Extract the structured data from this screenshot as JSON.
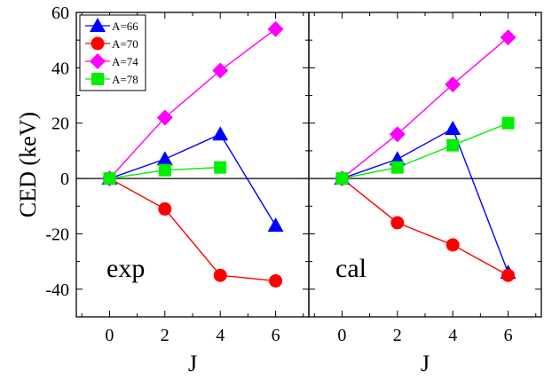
{
  "chart_data": [
    {
      "type": "line",
      "panel": "exp",
      "label": "exp",
      "xlabel": "J",
      "ylabel": "CED  (keV)",
      "xlim": [
        -1.2,
        7.2
      ],
      "ylim": [
        -50,
        60
      ],
      "xticks": [
        0,
        2,
        4,
        6
      ],
      "yticks": [
        -40,
        -20,
        0,
        20,
        40,
        60
      ],
      "zero_line": true,
      "legend": {
        "position": "top-left"
      },
      "series": [
        {
          "name": "A=66",
          "color": "#0000ff",
          "marker": "triangle",
          "x": [
            0,
            2,
            4,
            6
          ],
          "y": [
            0,
            7,
            16,
            -17
          ]
        },
        {
          "name": "A=70",
          "color": "#ff0000",
          "marker": "circle",
          "x": [
            0,
            2,
            4,
            6
          ],
          "y": [
            0,
            -11,
            -35,
            -37
          ]
        },
        {
          "name": "A=74",
          "color": "#ff00ff",
          "marker": "diamond",
          "x": [
            0,
            2,
            4,
            6
          ],
          "y": [
            0,
            22,
            39,
            54
          ]
        },
        {
          "name": "A=78",
          "color": "#00ee00",
          "marker": "square",
          "x": [
            0,
            2,
            4
          ],
          "y": [
            0,
            3,
            4
          ]
        }
      ]
    },
    {
      "type": "line",
      "panel": "cal",
      "label": "cal",
      "xlabel": "J",
      "ylabel": "",
      "xlim": [
        -1.2,
        7.2
      ],
      "ylim": [
        -50,
        60
      ],
      "xticks": [
        0,
        2,
        4,
        6
      ],
      "yticks": [
        -40,
        -20,
        0,
        20,
        40,
        60
      ],
      "zero_line": true,
      "series": [
        {
          "name": "A=66",
          "color": "#0000ff",
          "marker": "triangle",
          "x": [
            0,
            2,
            4,
            6
          ],
          "y": [
            0,
            7,
            18,
            -34
          ]
        },
        {
          "name": "A=70",
          "color": "#ff0000",
          "marker": "circle",
          "x": [
            0,
            2,
            4,
            6
          ],
          "y": [
            0,
            -16,
            -24,
            -35
          ]
        },
        {
          "name": "A=74",
          "color": "#ff00ff",
          "marker": "diamond",
          "x": [
            0,
            2,
            4,
            6
          ],
          "y": [
            0,
            16,
            34,
            51
          ]
        },
        {
          "name": "A=78",
          "color": "#00ee00",
          "marker": "square",
          "x": [
            0,
            2,
            4,
            6
          ],
          "y": [
            0,
            4,
            12,
            20
          ]
        }
      ]
    }
  ]
}
